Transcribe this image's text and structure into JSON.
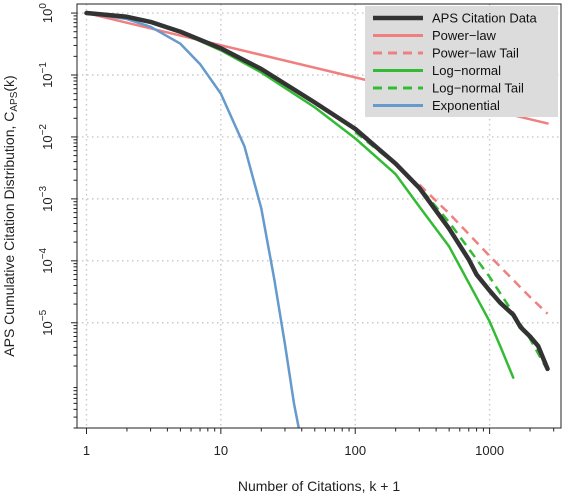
{
  "chart_data": {
    "type": "line",
    "xlabel": "Number of Citations, k + 1",
    "ylabel_main": "APS Cumulative Citation Distribution, C",
    "ylabel_sub": "APS",
    "ylabel_tail": "(k)",
    "x_scale": "log",
    "y_scale": "log",
    "xlim": [
      0.85,
      3400
    ],
    "ylim": [
      2e-07,
      1.4
    ],
    "x_ticks": [
      {
        "value": 1,
        "label": "1"
      },
      {
        "value": 10,
        "label": "10"
      },
      {
        "value": 100,
        "label": "100"
      },
      {
        "value": 1000,
        "label": "1000"
      }
    ],
    "y_ticks": [
      {
        "value": 1,
        "base": "10",
        "exp": "0"
      },
      {
        "value": 0.1,
        "base": "10",
        "exp": "−1"
      },
      {
        "value": 0.01,
        "base": "10",
        "exp": "−2"
      },
      {
        "value": 0.001,
        "base": "10",
        "exp": "−3"
      },
      {
        "value": 0.0001,
        "base": "10",
        "exp": "−4"
      },
      {
        "value": 1e-05,
        "base": "10",
        "exp": "−5"
      }
    ],
    "grid": true,
    "legend_position": "top-right",
    "series": [
      {
        "name": "APS Citation Data",
        "color": "#333333",
        "dash": "solid",
        "width": 4.5,
        "points": [
          [
            1,
            1.0
          ],
          [
            2,
            0.87
          ],
          [
            3,
            0.72
          ],
          [
            5,
            0.5
          ],
          [
            10,
            0.27
          ],
          [
            20,
            0.125
          ],
          [
            50,
            0.036
          ],
          [
            100,
            0.0135
          ],
          [
            200,
            0.0037
          ],
          [
            300,
            0.0015
          ],
          [
            500,
            0.00033
          ],
          [
            700,
            0.000105
          ],
          [
            800,
            6e-05
          ],
          [
            1000,
            3.3e-05
          ],
          [
            1200,
            2.1e-05
          ],
          [
            1500,
            1.35e-05
          ],
          [
            1700,
            8.5e-06
          ],
          [
            2000,
            6e-06
          ],
          [
            2300,
            4.2e-06
          ],
          [
            2700,
            1.8e-06
          ]
        ]
      },
      {
        "name": "Power−law",
        "color": "#F08080",
        "dash": "solid",
        "width": 2.5,
        "points": [
          [
            1,
            1.0
          ],
          [
            2700,
            0.0165
          ]
        ]
      },
      {
        "name": "Power−law Tail",
        "color": "#F08080",
        "dash": "dashed",
        "width": 2.5,
        "points": [
          [
            300,
            0.0017
          ],
          [
            500,
            0.00058
          ],
          [
            1000,
            0.00012
          ],
          [
            2000,
            2.6e-05
          ],
          [
            2700,
            1.4e-05
          ]
        ]
      },
      {
        "name": "Log−normal",
        "color": "#33BB33",
        "dash": "solid",
        "width": 2.5,
        "points": [
          [
            1,
            1.0
          ],
          [
            2,
            0.85
          ],
          [
            3,
            0.7
          ],
          [
            5,
            0.49
          ],
          [
            10,
            0.25
          ],
          [
            20,
            0.11
          ],
          [
            50,
            0.03
          ],
          [
            100,
            0.0095
          ],
          [
            200,
            0.0025
          ],
          [
            300,
            0.00075
          ],
          [
            500,
            0.00017
          ],
          [
            1000,
            1.05e-05
          ],
          [
            1200,
            4.2e-06
          ],
          [
            1500,
            1.3e-06
          ]
        ]
      },
      {
        "name": "Log−normal Tail",
        "color": "#33BB33",
        "dash": "dashed",
        "width": 2.5,
        "points": [
          [
            100,
            0.012
          ],
          [
            200,
            0.0036
          ],
          [
            300,
            0.00155
          ],
          [
            500,
            0.00042
          ],
          [
            1000,
            5.5e-05
          ],
          [
            2000,
            5.5e-06
          ],
          [
            2700,
            1.7e-06
          ]
        ]
      },
      {
        "name": "Exponential",
        "color": "#6699CC",
        "dash": "solid",
        "width": 2.5,
        "points": [
          [
            1,
            1.0
          ],
          [
            2,
            0.8
          ],
          [
            3,
            0.6
          ],
          [
            5,
            0.32
          ],
          [
            7,
            0.15
          ],
          [
            10,
            0.05
          ],
          [
            15,
            0.007
          ],
          [
            20,
            0.0007
          ],
          [
            25,
            5e-05
          ],
          [
            30,
            4.5e-06
          ],
          [
            35,
            5e-07
          ],
          [
            38,
            2e-07
          ]
        ]
      }
    ]
  }
}
